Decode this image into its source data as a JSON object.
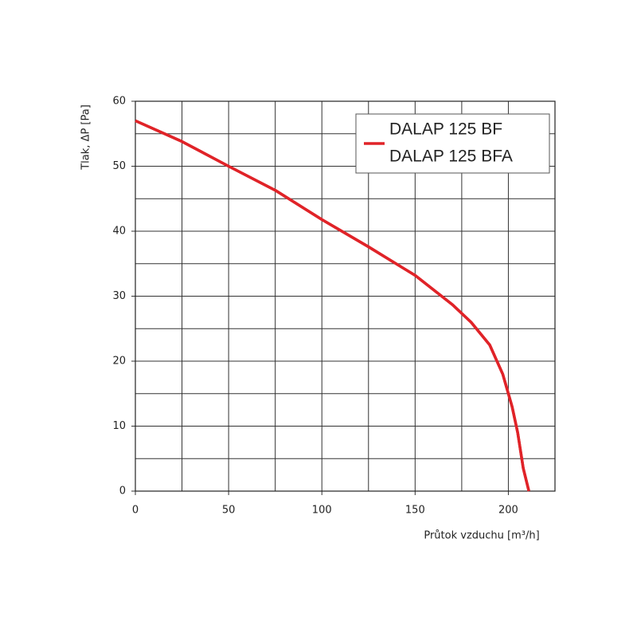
{
  "chart_data": {
    "type": "line",
    "xlabel": "Průtok vzduchu [m³/h]",
    "ylabel": "Tlak, ΔP [Pa]",
    "x": [
      0,
      25,
      50,
      75,
      100,
      125,
      150,
      170,
      180,
      190,
      197,
      202,
      205,
      208,
      211
    ],
    "series": [
      {
        "name": "DALAP 125 BF",
        "color": "#e02328",
        "values": [
          57,
          53.8,
          50,
          46.3,
          41.8,
          37.6,
          33.2,
          28.7,
          26,
          22.5,
          18,
          13,
          9,
          3.5,
          0
        ]
      },
      {
        "name": "DALAP 125 BFA",
        "color": "#e02328",
        "values": [
          57,
          53.8,
          50,
          46.3,
          41.8,
          37.6,
          33.2,
          28.7,
          26,
          22.5,
          18,
          13,
          9,
          3.5,
          0
        ]
      }
    ],
    "xlim": [
      0,
      225
    ],
    "ylim": [
      0,
      60
    ],
    "xticks": [
      0,
      50,
      100,
      150,
      200
    ],
    "yticks": [
      0,
      10,
      20,
      30,
      40,
      50,
      60
    ],
    "x_minor_grid": [
      25,
      75,
      125,
      175,
      225
    ],
    "y_minor_grid": [
      5,
      15,
      25,
      35,
      45,
      55
    ],
    "grid": true,
    "legend": "upper right"
  }
}
